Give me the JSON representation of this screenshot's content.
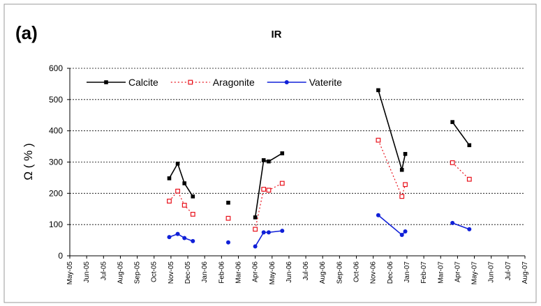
{
  "chart_data": {
    "type": "line",
    "panel_label": "(a)",
    "title": "IR",
    "y_label": "Ω ( % )",
    "xlim": [
      0,
      27
    ],
    "xticks": [
      {
        "value": 0,
        "label": "May-05"
      },
      {
        "value": 1,
        "label": "Jun-05"
      },
      {
        "value": 2,
        "label": "Jul-05"
      },
      {
        "value": 3,
        "label": "Aug-05"
      },
      {
        "value": 4,
        "label": "Sep-05"
      },
      {
        "value": 5,
        "label": "Oct-05"
      },
      {
        "value": 6,
        "label": "Nov-05"
      },
      {
        "value": 7,
        "label": "Dec-05"
      },
      {
        "value": 8,
        "label": "Jan-06"
      },
      {
        "value": 9,
        "label": "Feb-06"
      },
      {
        "value": 10,
        "label": "Mar-06"
      },
      {
        "value": 11,
        "label": "Apr-06"
      },
      {
        "value": 12,
        "label": "May-06"
      },
      {
        "value": 13,
        "label": "Jun-06"
      },
      {
        "value": 14,
        "label": "Jul-06"
      },
      {
        "value": 15,
        "label": "Aug-06"
      },
      {
        "value": 16,
        "label": "Sep-06"
      },
      {
        "value": 17,
        "label": "Oct-06"
      },
      {
        "value": 18,
        "label": "Nov-06"
      },
      {
        "value": 19,
        "label": "Dec-06"
      },
      {
        "value": 20,
        "label": "Jan-07"
      },
      {
        "value": 21,
        "label": "Feb-07"
      },
      {
        "value": 22,
        "label": "Mar-07"
      },
      {
        "value": 23,
        "label": "Apr-07"
      },
      {
        "value": 24,
        "label": "May-07"
      },
      {
        "value": 25,
        "label": "Jun-07"
      },
      {
        "value": 26,
        "label": "Jul-07"
      },
      {
        "value": 27,
        "label": "Aug-07"
      }
    ],
    "ylim": [
      0,
      600
    ],
    "yticks": [
      0,
      100,
      200,
      300,
      400,
      500,
      600
    ],
    "grid": true,
    "legend": "top-left",
    "series": [
      {
        "name": "Calcite",
        "color": "#000000",
        "dash": false,
        "marker": "square-filled",
        "x": [
          5.9,
          6.4,
          6.8,
          7.3,
          null,
          9.4,
          null,
          11.0,
          11.5,
          11.8,
          12.6,
          null,
          18.3,
          19.7,
          19.9,
          null,
          22.7,
          23.7
        ],
        "values": [
          248,
          295,
          232,
          190,
          null,
          170,
          null,
          123,
          306,
          302,
          328,
          null,
          530,
          275,
          326,
          null,
          428,
          354
        ]
      },
      {
        "name": "Aragonite",
        "color": "#e8101a",
        "dash": true,
        "marker": "square-open",
        "x": [
          5.9,
          6.4,
          6.8,
          7.3,
          null,
          9.4,
          null,
          11.0,
          11.5,
          11.8,
          12.6,
          null,
          18.3,
          19.7,
          19.9,
          null,
          22.7,
          23.7
        ],
        "values": [
          175,
          207,
          162,
          133,
          null,
          120,
          null,
          85,
          213,
          210,
          232,
          null,
          370,
          190,
          228,
          null,
          298,
          245
        ]
      },
      {
        "name": "Vaterite",
        "color": "#1020d8",
        "dash": false,
        "marker": "circle-filled",
        "x": [
          5.9,
          6.4,
          6.8,
          7.3,
          null,
          9.4,
          null,
          11.0,
          11.5,
          11.8,
          12.6,
          null,
          18.3,
          19.7,
          19.9,
          null,
          22.7,
          23.7
        ],
        "values": [
          60,
          70,
          57,
          47,
          null,
          43,
          null,
          30,
          75,
          75,
          80,
          null,
          130,
          67,
          78,
          null,
          105,
          85
        ]
      }
    ]
  }
}
